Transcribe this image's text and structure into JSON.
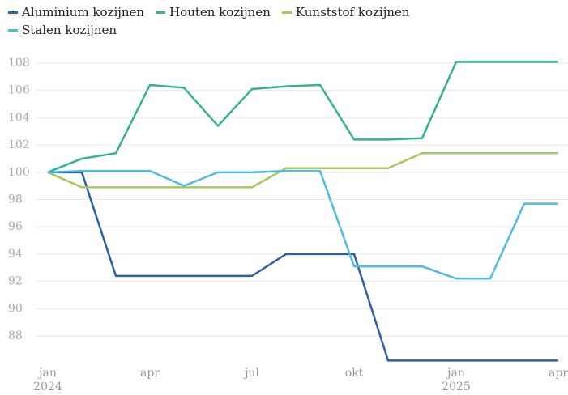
{
  "chart_data": {
    "type": "line",
    "categories": [
      "jan 2024",
      null,
      null,
      "apr",
      null,
      null,
      "jul",
      null,
      null,
      "okt",
      null,
      null,
      "jan 2025",
      null,
      null,
      "apr"
    ],
    "series": [
      {
        "name": "Aluminium kozijnen",
        "color": "#2d5ea8",
        "values": [
          100,
          100,
          92.4,
          92.4,
          92.4,
          92.4,
          92.4,
          94,
          94,
          94,
          86.2,
          86.2,
          86.2,
          86.2,
          86.2,
          86.2
        ]
      },
      {
        "name": "Houten kozijnen",
        "color": "#35b294",
        "values": [
          100,
          101,
          101.4,
          106.4,
          106.2,
          103.4,
          106.1,
          106.3,
          106.4,
          102.4,
          102.4,
          102.5,
          108.1,
          108.1,
          108.1,
          108.1
        ]
      },
      {
        "name": "Kunststof kozijnen",
        "color": "#a5c95b",
        "values": [
          100,
          98.9,
          98.9,
          98.9,
          98.9,
          98.9,
          98.9,
          100.3,
          100.3,
          100.3,
          100.3,
          101.4,
          101.4,
          101.4,
          101.4,
          101.4
        ]
      },
      {
        "name": "Stalen kozijnen",
        "color": "#4fbae3",
        "values": [
          100,
          100.1,
          100.1,
          100.1,
          99,
          100,
          100,
          100.1,
          100.1,
          93.1,
          93.1,
          93.1,
          92.2,
          92.2,
          97.7,
          97.7
        ]
      }
    ],
    "ylim": [
      86,
      108.5
    ],
    "yticks": [
      88,
      90,
      92,
      94,
      96,
      98,
      100,
      102,
      104,
      106,
      108
    ],
    "grid": true,
    "legend": "top"
  }
}
